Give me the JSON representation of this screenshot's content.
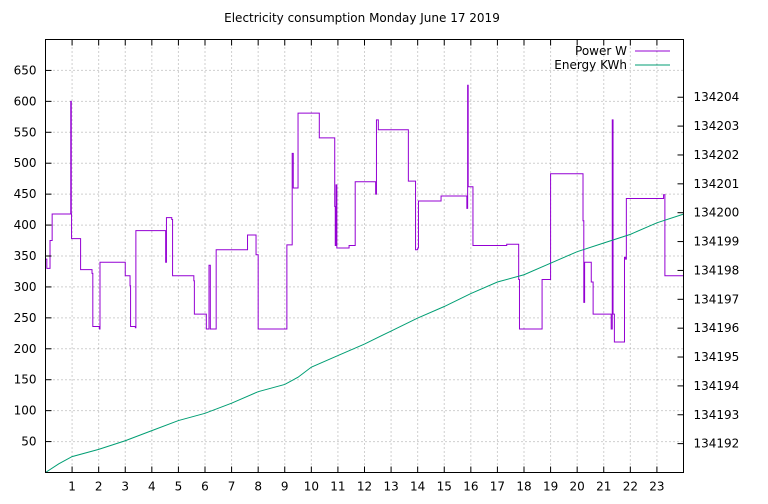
{
  "chart_data": {
    "type": "line",
    "title": "Electricity consumption Monday June 17 2019",
    "xlabel": "",
    "ylabel": "",
    "y2label": "",
    "xlim": [
      0,
      24
    ],
    "ylim": [
      0,
      700
    ],
    "y2lim": [
      134191.0,
      134206.0
    ],
    "x_ticks": [
      1,
      2,
      3,
      4,
      5,
      6,
      7,
      8,
      9,
      10,
      11,
      12,
      13,
      14,
      15,
      16,
      17,
      18,
      19,
      20,
      21,
      22,
      23
    ],
    "y_ticks": [
      50,
      100,
      150,
      200,
      250,
      300,
      350,
      400,
      450,
      500,
      550,
      600,
      650
    ],
    "y2_ticks": [
      134192,
      134193,
      134194,
      134195,
      134196,
      134197,
      134198,
      134199,
      134200,
      134201,
      134202,
      134203,
      134204
    ],
    "grid": true,
    "legend_position": "top-right",
    "series": [
      {
        "name": "Power W",
        "axis": "left",
        "color": "#9400d3",
        "step": true,
        "points": [
          [
            0.0,
            345
          ],
          [
            0.05,
            330
          ],
          [
            0.15,
            330
          ],
          [
            0.17,
            375
          ],
          [
            0.25,
            418
          ],
          [
            0.93,
            418
          ],
          [
            0.95,
            600
          ],
          [
            0.97,
            418
          ],
          [
            0.98,
            378
          ],
          [
            1.3,
            378
          ],
          [
            1.32,
            328
          ],
          [
            1.65,
            328
          ],
          [
            1.75,
            322
          ],
          [
            1.78,
            236
          ],
          [
            2.0,
            236
          ],
          [
            2.03,
            232
          ],
          [
            2.05,
            340
          ],
          [
            2.98,
            340
          ],
          [
            3.0,
            318
          ],
          [
            3.15,
            318
          ],
          [
            3.18,
            302
          ],
          [
            3.2,
            236
          ],
          [
            3.38,
            234
          ],
          [
            3.4,
            391
          ],
          [
            4.5,
            391
          ],
          [
            4.52,
            340
          ],
          [
            4.55,
            412
          ],
          [
            4.72,
            412
          ],
          [
            4.75,
            409
          ],
          [
            4.78,
            318
          ],
          [
            5.55,
            318
          ],
          [
            5.58,
            310
          ],
          [
            5.6,
            256
          ],
          [
            6.03,
            256
          ],
          [
            6.05,
            232
          ],
          [
            6.12,
            232
          ],
          [
            6.15,
            335
          ],
          [
            6.2,
            232
          ],
          [
            6.38,
            232
          ],
          [
            6.42,
            360
          ],
          [
            7.55,
            360
          ],
          [
            7.6,
            384
          ],
          [
            7.9,
            384
          ],
          [
            7.92,
            352
          ],
          [
            8.0,
            232
          ],
          [
            9.05,
            232
          ],
          [
            9.08,
            368
          ],
          [
            9.25,
            368
          ],
          [
            9.28,
            516
          ],
          [
            9.32,
            460
          ],
          [
            9.45,
            460
          ],
          [
            9.5,
            581
          ],
          [
            10.25,
            581
          ],
          [
            10.3,
            541
          ],
          [
            10.85,
            541
          ],
          [
            10.88,
            430
          ],
          [
            10.9,
            367
          ],
          [
            10.93,
            465
          ],
          [
            10.96,
            363
          ],
          [
            11.4,
            363
          ],
          [
            11.42,
            367
          ],
          [
            11.6,
            367
          ],
          [
            11.65,
            470
          ],
          [
            12.4,
            470
          ],
          [
            12.42,
            450
          ],
          [
            12.45,
            570
          ],
          [
            12.52,
            554
          ],
          [
            13.6,
            554
          ],
          [
            13.65,
            471
          ],
          [
            13.9,
            471
          ],
          [
            13.92,
            360
          ],
          [
            14.0,
            363
          ],
          [
            14.03,
            439
          ],
          [
            14.85,
            439
          ],
          [
            14.88,
            447
          ],
          [
            15.82,
            447
          ],
          [
            15.85,
            427
          ],
          [
            15.88,
            626
          ],
          [
            15.9,
            462
          ],
          [
            16.05,
            462
          ],
          [
            16.08,
            367
          ],
          [
            17.3,
            367
          ],
          [
            17.35,
            369
          ],
          [
            17.78,
            369
          ],
          [
            17.8,
            312
          ],
          [
            17.83,
            232
          ],
          [
            18.65,
            232
          ],
          [
            18.68,
            312
          ],
          [
            18.98,
            312
          ],
          [
            19.0,
            483
          ],
          [
            20.2,
            483
          ],
          [
            20.22,
            407
          ],
          [
            20.25,
            275
          ],
          [
            20.28,
            340
          ],
          [
            20.5,
            340
          ],
          [
            20.53,
            308
          ],
          [
            20.6,
            256
          ],
          [
            21.25,
            256
          ],
          [
            21.28,
            232
          ],
          [
            21.32,
            570
          ],
          [
            21.35,
            256
          ],
          [
            21.4,
            211
          ],
          [
            21.75,
            211
          ],
          [
            21.78,
            348
          ],
          [
            21.82,
            345
          ],
          [
            21.85,
            443
          ],
          [
            23.2,
            443
          ],
          [
            23.25,
            449
          ],
          [
            23.3,
            318
          ],
          [
            24.0,
            318
          ]
        ]
      },
      {
        "name": "Energy KWh",
        "axis": "right",
        "color": "#009e73",
        "step": false,
        "points": [
          [
            0.0,
            134191.0
          ],
          [
            0.5,
            134191.3
          ],
          [
            1.0,
            134191.55
          ],
          [
            2.0,
            134191.8
          ],
          [
            3.0,
            134192.1
          ],
          [
            4.0,
            134192.45
          ],
          [
            5.0,
            134192.8
          ],
          [
            6.0,
            134193.05
          ],
          [
            7.0,
            134193.4
          ],
          [
            8.0,
            134193.8
          ],
          [
            9.0,
            134194.05
          ],
          [
            9.5,
            134194.3
          ],
          [
            10.0,
            134194.65
          ],
          [
            11.0,
            134195.05
          ],
          [
            12.0,
            134195.45
          ],
          [
            13.0,
            134195.9
          ],
          [
            14.0,
            134196.35
          ],
          [
            15.0,
            134196.75
          ],
          [
            16.0,
            134197.2
          ],
          [
            17.0,
            134197.6
          ],
          [
            18.0,
            134197.85
          ],
          [
            19.0,
            134198.25
          ],
          [
            20.0,
            134198.65
          ],
          [
            21.0,
            134198.95
          ],
          [
            22.0,
            134199.25
          ],
          [
            23.0,
            134199.65
          ],
          [
            24.0,
            134199.95
          ]
        ]
      }
    ]
  }
}
